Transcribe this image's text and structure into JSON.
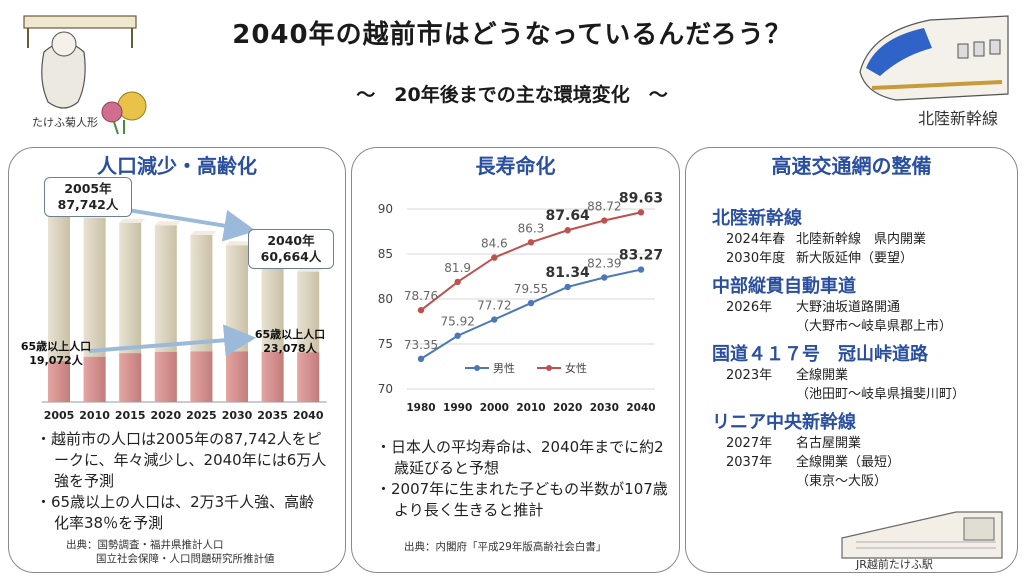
{
  "header": {
    "title": "2040年の越前市はどうなっているんだろう？",
    "subtitle": "～　20年後までの主な環境変化　～"
  },
  "decor": {
    "left_caption": "たけふ菊人形",
    "right_caption": "北陸新幹線",
    "station_caption": "JR越前たけふ駅"
  },
  "panel1": {
    "title": "人口減少・高齢化",
    "callout_2005": "2005年\n87,742人",
    "callout_2040": "2040年\n60,664人",
    "label_elderly_2005": "65歳以上人口\n19,072人",
    "label_elderly_2040": "65歳以上人口\n23,078人",
    "bullets": [
      "・越前市の人口は2005年の87,742人をピークに、年々減少し、2040年には6万人強を予測",
      "・65歳以上の人口は、2万3千人強、高齢化率38％を予測"
    ],
    "source_line1": "出典：国勢調査・福井県推計人口",
    "source_line2": "国立社会保障・人口問題研究所推計値"
  },
  "panel2": {
    "title": "長寿命化",
    "bullets": [
      "・日本人の平均寿命は、2040年までに約2歳延びると予想",
      "・2007年に生まれた子どもの半数が107歳より長く生きると推計"
    ],
    "source": "出典：内閣府「平成29年版高齢社会白書」"
  },
  "panel3": {
    "title": "高速交通網の整備",
    "sections": [
      {
        "head": "北陸新幹線",
        "rows": [
          {
            "year": "2024年春",
            "event": "北陸新幹線　県内開業"
          },
          {
            "year": "2030年度",
            "event": "新大阪延伸（要望）"
          }
        ]
      },
      {
        "head": "中部縦貫自動車道",
        "rows": [
          {
            "year": "2026年",
            "event": "大野油坂道路開通"
          },
          {
            "year": "",
            "event": "（大野市～岐阜県郡上市）"
          }
        ]
      },
      {
        "head": "国道４１７号　冠山峠道路",
        "rows": [
          {
            "year": "2023年",
            "event": "全線開業"
          },
          {
            "year": "",
            "event": "（池田町～岐阜県揖斐川町）"
          }
        ]
      },
      {
        "head": "リニア中央新幹線",
        "rows": [
          {
            "year": "2027年",
            "event": "名古屋開業"
          },
          {
            "year": "2037年",
            "event": "全線開業（最短）"
          },
          {
            "year": "",
            "event": "（東京～大阪）"
          }
        ]
      }
    ]
  },
  "colors": {
    "accent_blue": "#2a4fa0",
    "bar_total": "#ddd6c3",
    "bar_elderly": "#d79593",
    "line_male": "#4a78b8",
    "line_female": "#c0504d",
    "arrow": "#9bbad9"
  },
  "chart_data": [
    {
      "type": "bar",
      "categories": [
        "2005",
        "2010",
        "2015",
        "2020",
        "2025",
        "2030",
        "2035",
        "2040"
      ],
      "series": [
        {
          "values": [
            87742,
            85600,
            83400,
            82200,
            77700,
            72900,
            66300,
            60664
          ]
        },
        {
          "values": [
            19072,
            21000,
            22700,
            23300,
            23500,
            23500,
            23300,
            23078
          ]
        }
      ],
      "ylim": [
        0,
        100000
      ],
      "grid": false
    },
    {
      "type": "line",
      "x": [
        "1980",
        "1990",
        "2000",
        "2010",
        "2020",
        "2030",
        "2040"
      ],
      "series": [
        {
          "name": "男性",
          "values": [
            73.35,
            75.92,
            77.72,
            79.55,
            81.34,
            82.39,
            83.27
          ],
          "color": "#4a78b8"
        },
        {
          "name": "女性",
          "values": [
            78.76,
            81.9,
            84.6,
            86.3,
            87.64,
            88.72,
            89.63
          ],
          "color": "#c0504d"
        }
      ],
      "value_labels_male": [
        "73.35",
        "75.92",
        "77.72",
        "79.55",
        "81.34",
        "82.39",
        "83.27"
      ],
      "value_labels_female": [
        "78.76",
        "81.9",
        "84.6",
        "86.3",
        "87.64",
        "88.72",
        "89.63"
      ],
      "bold_labels_male": [
        false,
        false,
        false,
        false,
        true,
        false,
        true
      ],
      "bold_labels_female": [
        false,
        false,
        false,
        false,
        true,
        false,
        true
      ],
      "yticks": [
        "70",
        "75",
        "80",
        "85",
        "90"
      ],
      "ylim": [
        70,
        90
      ],
      "legend": "bottom-inside",
      "grid": true
    }
  ]
}
